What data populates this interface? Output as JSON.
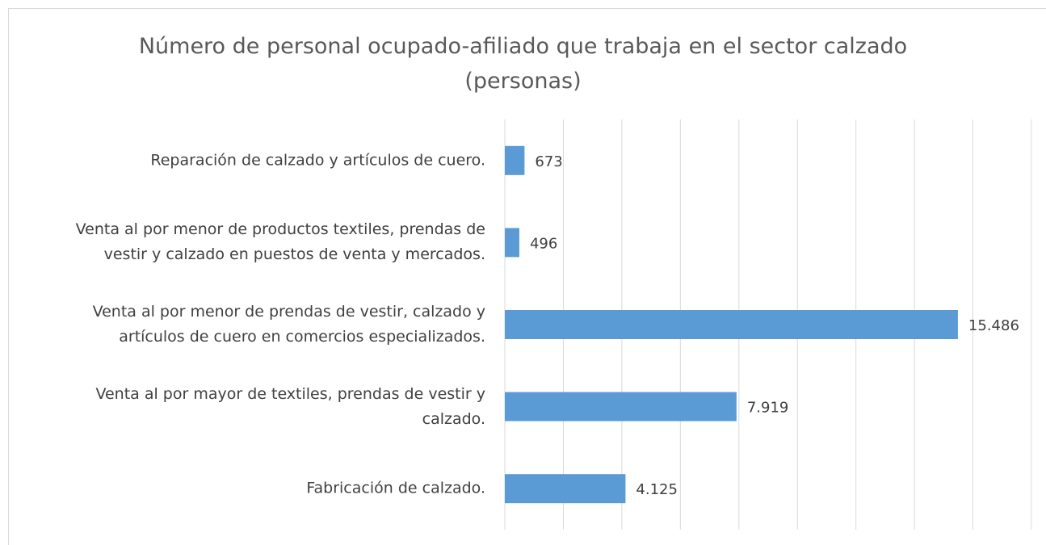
{
  "chart_data": {
    "type": "barh",
    "title": "Número de personal ocupado-afiliado que trabaja en el sector calzado\n(personas)",
    "categories": [
      "Reparación de calzado y artículos de cuero.",
      "Venta al por menor de productos textiles, prendas de\nvestir y calzado en puestos de venta y mercados.",
      "Venta al por menor de prendas de vestir, calzado y\nartículos de cuero en comercios especializados.",
      "Venta al por mayor de textiles, prendas de vestir y\ncalzado.",
      "Fabricación de calzado."
    ],
    "values": [
      673,
      496,
      15486,
      7919,
      4125
    ],
    "value_labels": [
      "673",
      "496",
      "15.486",
      "7.919",
      "4.125"
    ],
    "color": "#5b9bd5",
    "xlim": [
      0,
      18000
    ],
    "xticks": [
      0,
      2000,
      4000,
      6000,
      8000,
      10000,
      12000,
      14000,
      16000,
      18000
    ],
    "tick_labels": false,
    "grid": true
  }
}
